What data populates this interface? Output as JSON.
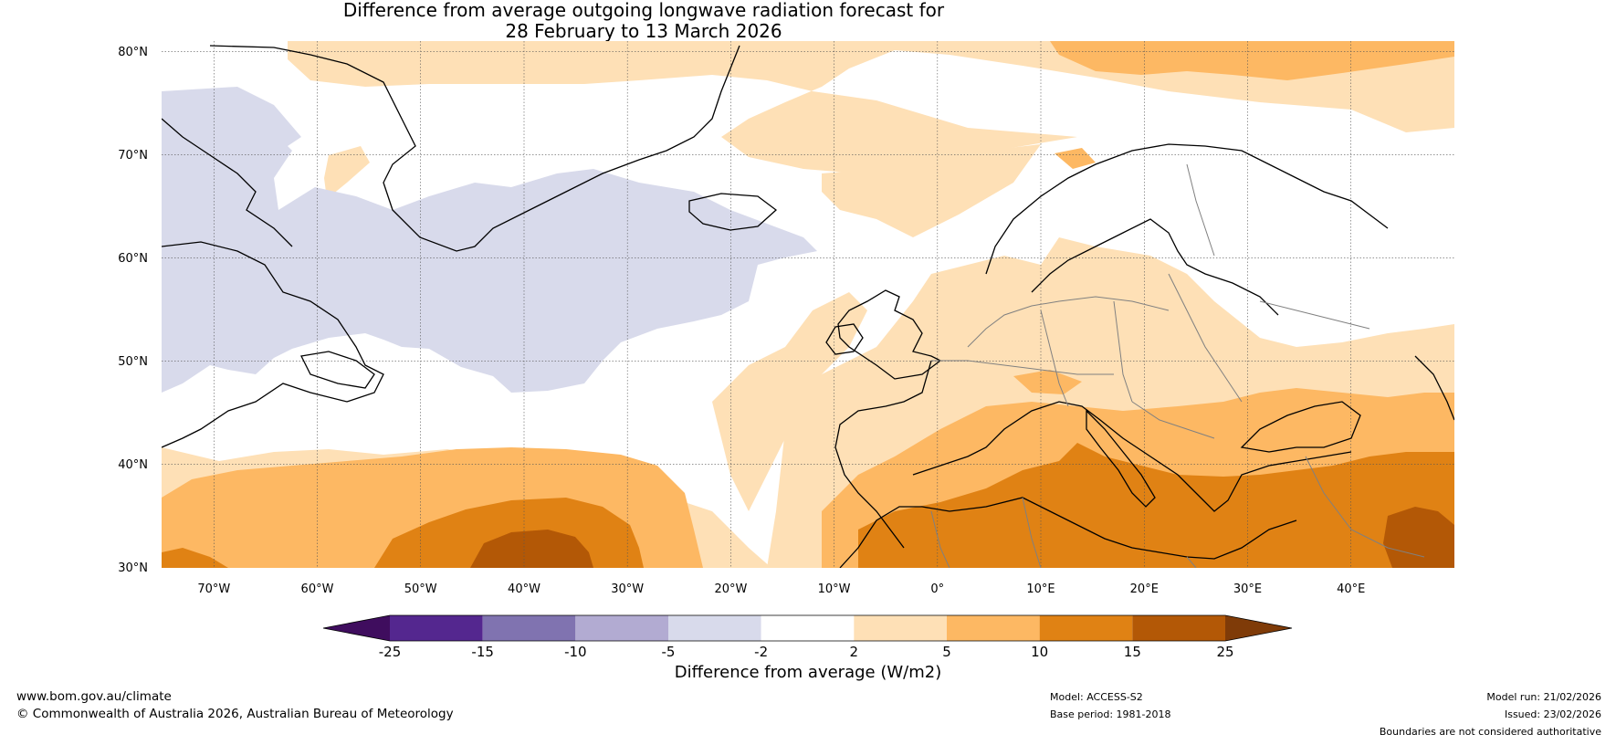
{
  "title_line1": "Difference from average outgoing longwave radiation forecast for",
  "title_line2": "28 February to 13 March 2026",
  "lat_labels": [
    "80°N",
    "70°N",
    "60°N",
    "50°N",
    "40°N",
    "30°N"
  ],
  "lon_labels": [
    "70°W",
    "60°W",
    "50°W",
    "40°W",
    "30°W",
    "20°W",
    "10°W",
    "0°",
    "10°E",
    "20°E",
    "30°E",
    "40°E"
  ],
  "legend": {
    "ticks": [
      "-25",
      "-15",
      "-10",
      "-5",
      "-2",
      "2",
      "5",
      "10",
      "15",
      "25"
    ],
    "colors": [
      "#3f0d5e",
      "#54278f",
      "#8073b0",
      "#b2abd2",
      "#d8daeb",
      "#ffffff",
      "#fee0b6",
      "#fdb863",
      "#e08214",
      "#b35806",
      "#7f3b08"
    ],
    "label": "Difference from average (W/m2)"
  },
  "footer": {
    "website": "www.bom.gov.au/climate",
    "copyright": "© Commonwealth of Australia 2026, Australian Bureau of Meteorology",
    "model": "Model: ACCESS-S2",
    "base_period": "Base period: 1981-2018",
    "model_run": "Model run: 21/02/2026",
    "issued": "Issued: 23/02/2026",
    "disclaimer": "Boundaries are not considered authoritative"
  }
}
